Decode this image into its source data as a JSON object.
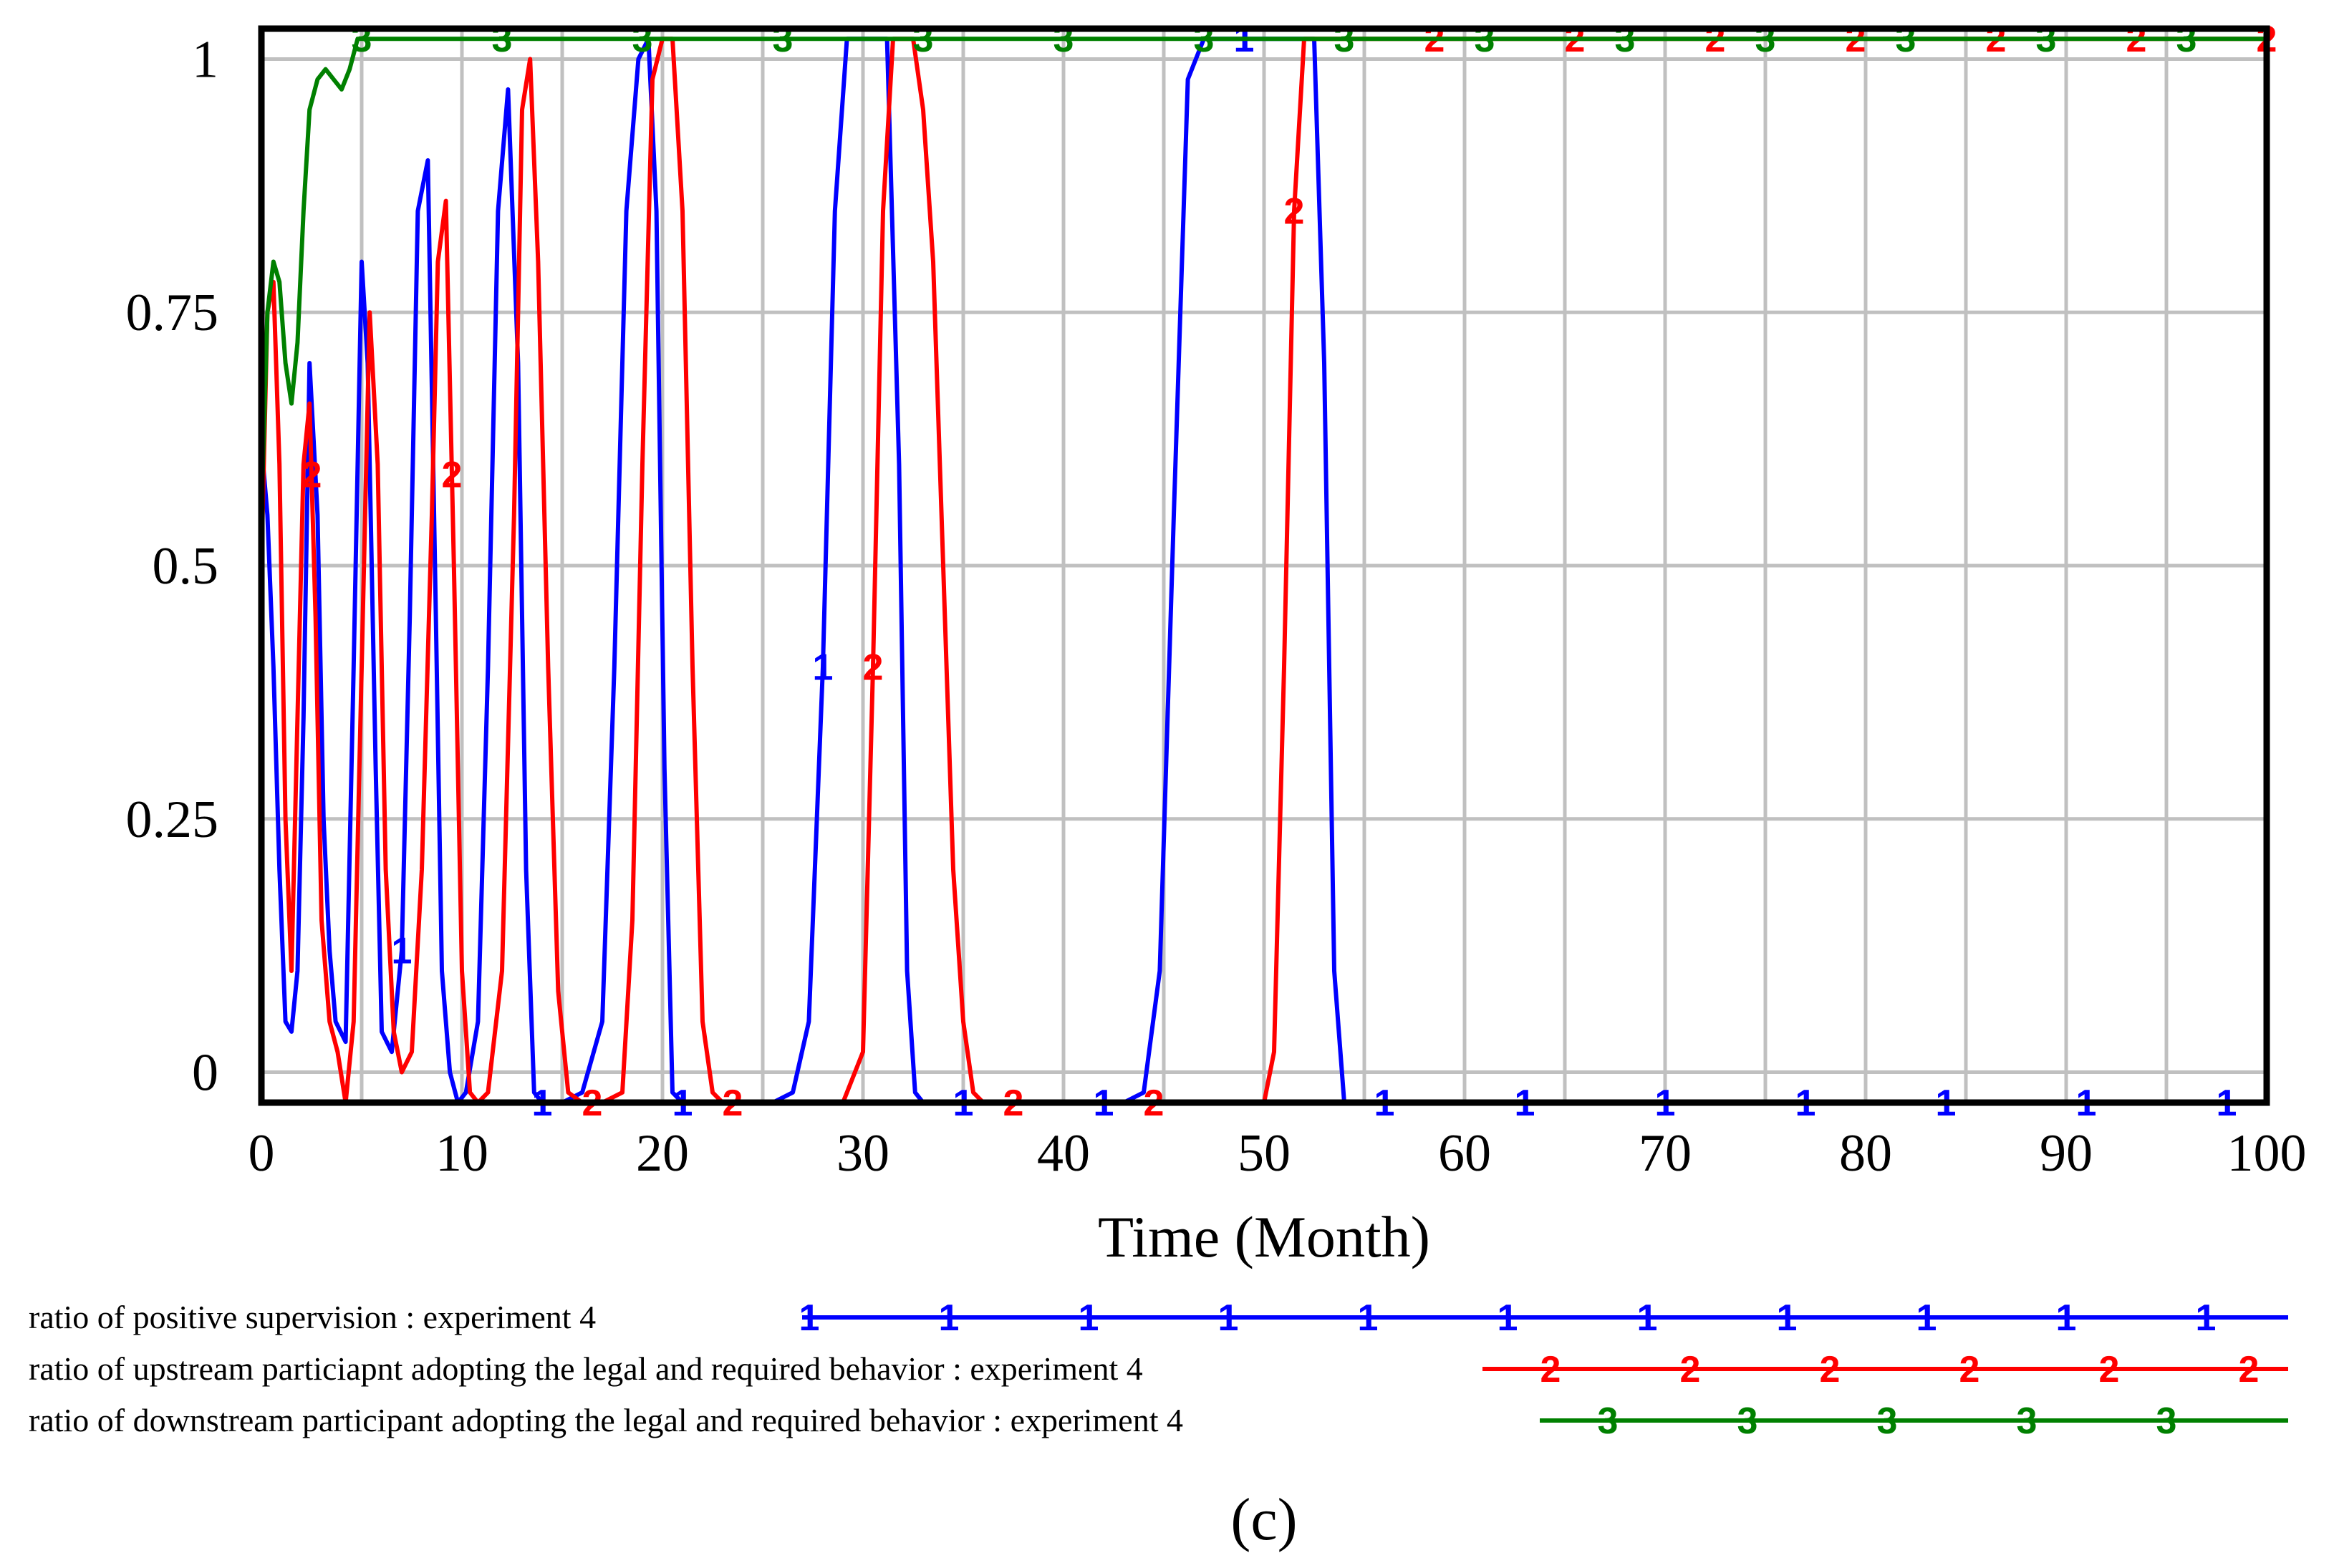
{
  "chart_data": {
    "type": "line",
    "title": "",
    "xlabel": "Time (Month)",
    "ylabel": "",
    "xlim": [
      0,
      100
    ],
    "ylim": [
      -0.03,
      1.03
    ],
    "x_ticks": [
      "0",
      "10",
      "20",
      "30",
      "40",
      "50",
      "60",
      "70",
      "80",
      "90",
      "100"
    ],
    "y_ticks": [
      "1",
      "0.75",
      "0.5",
      "0.25",
      "0"
    ],
    "caption": "(c)",
    "series": [
      {
        "id": "1",
        "name": "ratio of positive supervision : experiment 4",
        "color": "#0000ff",
        "x": [
          0,
          0.3,
          0.6,
          0.9,
          1.2,
          1.5,
          1.8,
          2.1,
          2.4,
          2.8,
          3.1,
          3.4,
          3.7,
          4.2,
          4.6,
          5.0,
          5.3,
          5.7,
          6.0,
          6.5,
          7.0,
          7.4,
          7.8,
          8.3,
          8.7,
          9.0,
          9.4,
          9.8,
          10.2,
          10.8,
          11.3,
          11.8,
          12.3,
          12.8,
          13.2,
          13.6,
          14.0,
          14.3,
          15.0,
          16.0,
          17.0,
          17.6,
          18.2,
          18.8,
          19.3,
          19.7,
          20.1,
          20.5,
          21.0,
          23.0,
          25.5,
          26.5,
          27.3,
          28.0,
          28.6,
          29.2,
          30.0,
          31.2,
          31.8,
          32.2,
          32.6,
          33.0,
          35.0,
          40.0,
          43.0,
          44.0,
          44.8,
          45.5,
          46.2,
          47.0,
          50.0,
          52.5,
          53.0,
          53.5,
          54.0,
          56.0,
          60.0,
          70.0,
          80.0,
          90.0,
          100.0
        ],
        "values": [
          0.62,
          0.55,
          0.4,
          0.2,
          0.05,
          0.04,
          0.1,
          0.35,
          0.7,
          0.55,
          0.25,
          0.12,
          0.05,
          0.03,
          0.4,
          0.8,
          0.7,
          0.3,
          0.04,
          0.02,
          0.12,
          0.45,
          0.85,
          0.9,
          0.45,
          0.1,
          0.0,
          -0.03,
          -0.02,
          0.05,
          0.4,
          0.85,
          0.97,
          0.7,
          0.2,
          -0.02,
          -0.03,
          -0.03,
          -0.03,
          -0.02,
          0.05,
          0.4,
          0.85,
          1.0,
          1.02,
          0.85,
          0.3,
          -0.02,
          -0.03,
          -0.03,
          -0.03,
          -0.02,
          0.05,
          0.4,
          0.85,
          1.02,
          1.02,
          1.02,
          0.6,
          0.1,
          -0.02,
          -0.03,
          -0.03,
          -0.03,
          -0.03,
          -0.02,
          0.1,
          0.55,
          0.98,
          1.02,
          1.02,
          1.02,
          0.7,
          0.1,
          -0.03,
          -0.03,
          -0.03,
          -0.03,
          -0.03,
          -0.03,
          -0.03
        ]
      },
      {
        "id": "2",
        "name": "ratio of upstream particiapnt adopting the legal and required behavior : experiment 4",
        "color": "#ff0000",
        "x": [
          0,
          0.3,
          0.6,
          0.9,
          1.2,
          1.5,
          1.8,
          2.1,
          2.4,
          2.7,
          3.0,
          3.4,
          3.8,
          4.2,
          4.6,
          5.0,
          5.4,
          5.8,
          6.2,
          6.6,
          7.0,
          7.5,
          8.0,
          8.5,
          8.8,
          9.2,
          9.6,
          10.0,
          10.4,
          10.8,
          11.3,
          12.0,
          12.6,
          13.0,
          13.4,
          13.8,
          14.3,
          14.8,
          15.3,
          16.0,
          17.0,
          18.0,
          18.5,
          19.0,
          19.5,
          20.0,
          20.5,
          21.0,
          21.5,
          22.0,
          22.5,
          23.0,
          25.0,
          27.0,
          29.0,
          30.0,
          30.5,
          31.0,
          31.5,
          32.0,
          32.5,
          33.0,
          33.5,
          34.0,
          34.5,
          35.0,
          35.5,
          36.0,
          40.0,
          45.0,
          50.0,
          50.5,
          51.0,
          51.5,
          52.0,
          52.5,
          53.0,
          60.0,
          70.0,
          80.0,
          90.0,
          100.0
        ],
        "values": [
          0.5,
          0.75,
          0.78,
          0.6,
          0.25,
          0.1,
          0.35,
          0.6,
          0.66,
          0.45,
          0.15,
          0.05,
          0.02,
          -0.03,
          0.05,
          0.4,
          0.75,
          0.6,
          0.2,
          0.04,
          0.0,
          0.02,
          0.2,
          0.55,
          0.8,
          0.86,
          0.5,
          0.1,
          -0.02,
          -0.03,
          -0.02,
          0.1,
          0.55,
          0.95,
          1.0,
          0.8,
          0.4,
          0.08,
          -0.02,
          -0.03,
          -0.03,
          -0.02,
          0.15,
          0.6,
          0.98,
          1.02,
          1.02,
          0.85,
          0.4,
          0.05,
          -0.02,
          -0.03,
          -0.03,
          -0.03,
          -0.03,
          0.02,
          0.4,
          0.85,
          1.02,
          1.02,
          1.02,
          0.95,
          0.8,
          0.5,
          0.2,
          0.05,
          -0.02,
          -0.03,
          -0.03,
          -0.03,
          -0.03,
          0.02,
          0.4,
          0.85,
          1.02,
          1.02,
          1.02,
          1.02,
          1.02,
          1.02,
          1.02,
          1.02
        ]
      },
      {
        "id": "3",
        "name": "ratio of downstream participant adopting the legal and required behavior : experiment 4",
        "color": "#008000",
        "x": [
          0,
          0.3,
          0.6,
          0.9,
          1.2,
          1.5,
          1.8,
          2.1,
          2.4,
          2.8,
          3.2,
          3.6,
          4.0,
          4.4,
          4.8,
          5.0,
          10.0,
          20.0,
          30.0,
          40.0,
          50.0,
          60.0,
          70.0,
          80.0,
          90.0,
          100.0
        ],
        "values": [
          0.55,
          0.75,
          0.8,
          0.78,
          0.7,
          0.66,
          0.72,
          0.85,
          0.95,
          0.98,
          0.99,
          0.98,
          0.97,
          0.99,
          1.02,
          1.02,
          1.02,
          1.02,
          1.02,
          1.02,
          1.02,
          1.02,
          1.02,
          1.02,
          1.02,
          1.02
        ]
      }
    ]
  }
}
